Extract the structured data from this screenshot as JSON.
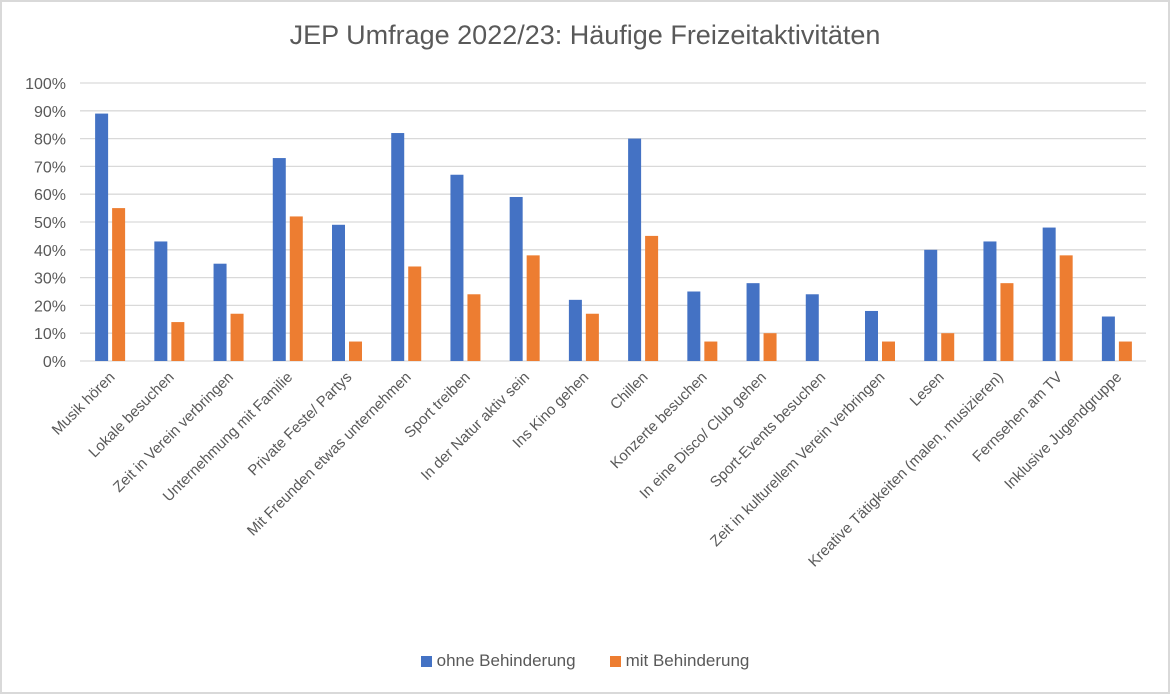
{
  "chart_data": {
    "type": "bar",
    "title": "JEP Umfrage 2022/23: Häufige Freizeitaktivitäten",
    "xlabel": "",
    "ylabel": "",
    "ylim": [
      0,
      100
    ],
    "yticks": [
      "0%",
      "10%",
      "20%",
      "30%",
      "40%",
      "50%",
      "60%",
      "70%",
      "80%",
      "90%",
      "100%"
    ],
    "grid": true,
    "legend_position": "bottom",
    "categories": [
      "Musik hören",
      "Lokale besuchen",
      "Zeit in Verein verbringen",
      "Unternehmung mit Familie",
      "Private Feste/ Partys",
      "Mit Freunden etwas unternehmen",
      "Sport treiben",
      "In der Natur aktiv sein",
      "Ins Kino gehen",
      "Chillen",
      "Konzerte besuchen",
      "In eine Disco/ Club gehen",
      "Sport-Events besuchen",
      "Zeit in kulturellem Verein verbringen",
      "Lesen",
      "Kreative Tätigkeiten (malen, musizieren)",
      "Fernsehen am TV",
      "Inklusive Jugendgruppe"
    ],
    "series": [
      {
        "name": "ohne Behinderung",
        "color": "#4472c4",
        "values": [
          89,
          43,
          35,
          73,
          49,
          82,
          67,
          59,
          22,
          80,
          25,
          28,
          24,
          18,
          40,
          43,
          48,
          16
        ]
      },
      {
        "name": "mit Behinderung",
        "color": "#ed7d31",
        "values": [
          55,
          14,
          17,
          52,
          7,
          34,
          24,
          38,
          17,
          45,
          7,
          10,
          0,
          7,
          10,
          28,
          38,
          7
        ]
      }
    ]
  }
}
